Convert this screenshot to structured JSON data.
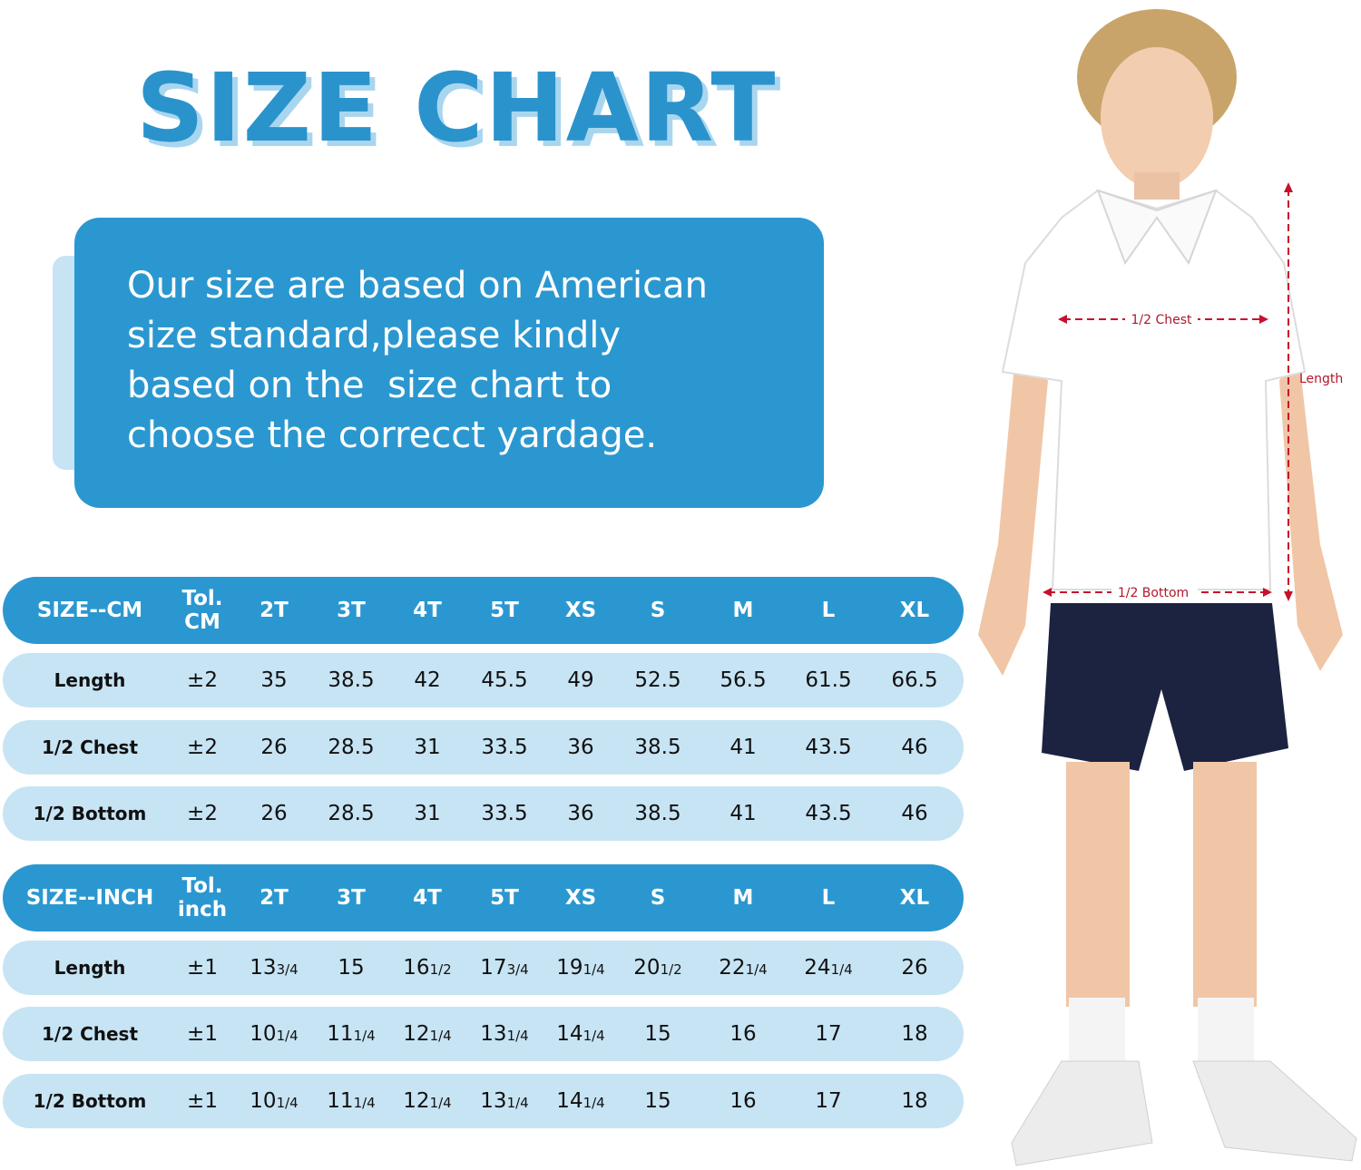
{
  "title": "SIZE CHART",
  "info_lines": [
    "Our size are based on American",
    "size standard,please kindly",
    "based on the  size chart to",
    "choose the correcct yardage."
  ],
  "colors": {
    "primary": "#2b97d0",
    "light": "#c7e4f4",
    "title": "#2b93cc",
    "measure": "#c8102e",
    "shorts": "#1b2340"
  },
  "tables": [
    {
      "header": [
        "SIZE--CM",
        "Tol.\nCM",
        "2T",
        "3T",
        "4T",
        "5T",
        "XS",
        "S",
        "M",
        "L",
        "XL"
      ],
      "rows": [
        [
          "Length",
          "±2",
          "35",
          "38.5",
          "42",
          "45.5",
          "49",
          "52.5",
          "56.5",
          "61.5",
          "66.5"
        ],
        [
          "1/2 Chest",
          "±2",
          "26",
          "28.5",
          "31",
          "33.5",
          "36",
          "38.5",
          "41",
          "43.5",
          "46"
        ],
        [
          "1/2 Bottom",
          "±2",
          "26",
          "28.5",
          "31",
          "33.5",
          "36",
          "38.5",
          "41",
          "43.5",
          "46"
        ]
      ]
    },
    {
      "header": [
        "SIZE--INCH",
        "Tol.\ninch",
        "2T",
        "3T",
        "4T",
        "5T",
        "XS",
        "S",
        "M",
        "L",
        "XL"
      ],
      "rows": [
        [
          "Length",
          "±1",
          "13 3/4",
          "15",
          "16 1/2",
          "17 3/4",
          "19 1/4",
          "20 1/2",
          "22 1/4",
          "24 1/4",
          "26"
        ],
        [
          "1/2 Chest",
          "±1",
          "10 1/4",
          "11 1/4",
          "12 1/4",
          "13 1/4",
          "14 1/4",
          "15",
          "16",
          "17",
          "18"
        ],
        [
          "1/2 Bottom",
          "±1",
          "10 1/4",
          "11 1/4",
          "12 1/4",
          "13 1/4",
          "14 1/4",
          "15",
          "16",
          "17",
          "18"
        ]
      ]
    }
  ],
  "figure": {
    "chest_label": "1/2 Chest",
    "length_label": "Length",
    "bottom_label": "1/2 Bottom"
  }
}
